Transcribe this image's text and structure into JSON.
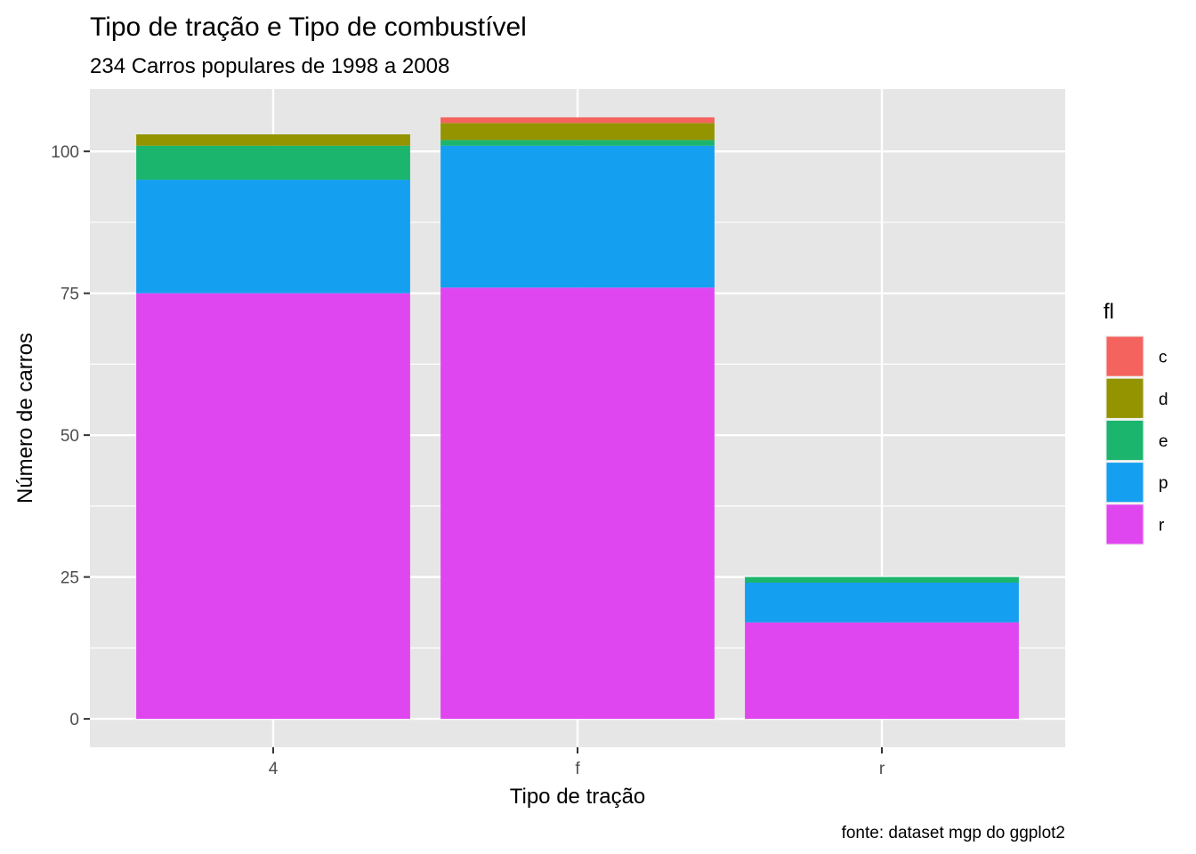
{
  "chart_data": {
    "type": "bar",
    "stacked": true,
    "title": "Tipo de tração e Tipo de combustível",
    "subtitle": "234 Carros populares de 1998 a 2008",
    "xlabel": "Tipo de tração",
    "ylabel": "Número de carros",
    "caption": "fonte: dataset mgp do ggplot2",
    "categories": [
      "4",
      "f",
      "r"
    ],
    "series": [
      {
        "name": "r",
        "color": "#E046F0",
        "values": [
          75,
          76,
          17
        ]
      },
      {
        "name": "p",
        "color": "#159FF0",
        "values": [
          20,
          25,
          7
        ]
      },
      {
        "name": "e",
        "color": "#1BB56E",
        "values": [
          6,
          1,
          1
        ]
      },
      {
        "name": "d",
        "color": "#939400",
        "values": [
          2,
          3,
          0
        ]
      },
      {
        "name": "c",
        "color": "#F4635D",
        "values": [
          0,
          1,
          0
        ]
      }
    ],
    "yticks": [
      0,
      25,
      50,
      75,
      100
    ],
    "ylim": [
      -5,
      111
    ],
    "grid": true,
    "legend": {
      "title": "fl",
      "position": "right",
      "entries": [
        "c",
        "d",
        "e",
        "p",
        "r"
      ]
    },
    "panel_background": "#E6E6E6",
    "grid_color": "#FFFFFF"
  }
}
